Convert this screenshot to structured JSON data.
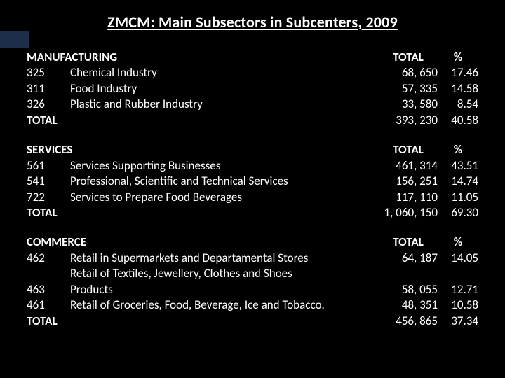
{
  "title": "ZMCM: Main Subsectors in Subcenters, 2009",
  "col_total": "TOTAL",
  "col_pct": "%",
  "total_label": "TOTAL",
  "sections": {
    "manufacturing": {
      "name": "MANUFACTURING",
      "rows": [
        {
          "code": "325",
          "desc": "Chemical Industry",
          "total": "68, 650",
          "pct": "17.46"
        },
        {
          "code": "311",
          "desc": "Food Industry",
          "total": "57, 335",
          "pct": "14.58"
        },
        {
          "code": "326",
          "desc": "Plastic and Rubber Industry",
          "total": "33, 580",
          "pct": "8.54"
        }
      ],
      "sum_total": "393, 230",
      "sum_pct": "40.58"
    },
    "services": {
      "name": "SERVICES",
      "rows": [
        {
          "code": "561",
          "desc": "Services Supporting Businesses",
          "total": "461, 314",
          "pct": "43.51"
        },
        {
          "code": "541",
          "desc": "Professional, Scientific and Technical Services",
          "total": "156, 251",
          "pct": "14.74"
        },
        {
          "code": "722",
          "desc": "Services to Prepare Food Beverages",
          "total": "117, 110",
          "pct": "11.05"
        }
      ],
      "sum_total": "1, 060, 150",
      "sum_pct": "69.30"
    },
    "commerce": {
      "name": "COMMERCE",
      "rows": [
        {
          "code": "462",
          "desc": "Retail in Supermarkets and Departamental Stores",
          "total": "64, 187",
          "pct": "14.05"
        },
        {
          "code": "",
          "desc": "Retail of Textiles, Jewellery, Clothes and Shoes",
          "total": "",
          "pct": ""
        },
        {
          "code": "463",
          "desc": "Products",
          "total": "58, 055",
          "pct": "12.71"
        },
        {
          "code": "461",
          "desc": "Retail of Groceries, Food, Beverage, Ice and Tobacco.",
          "total": "48, 351",
          "pct": "10.58"
        }
      ],
      "sum_total": "456, 865",
      "sum_pct": "37.34"
    }
  }
}
